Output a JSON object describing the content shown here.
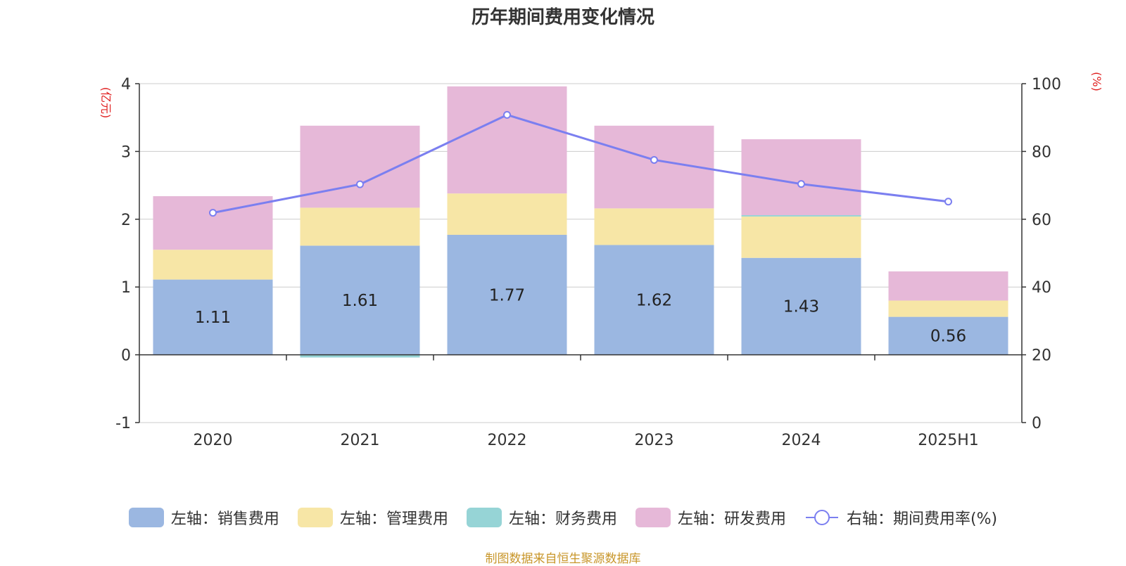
{
  "chart_data": {
    "type": "bar",
    "title": "历年期间费用变化情况",
    "categories": [
      "2020",
      "2021",
      "2022",
      "2023",
      "2024",
      "2025H1"
    ],
    "series": [
      {
        "name": "左轴：销售费用",
        "axis": "left",
        "kind": "stacked-bar",
        "color": "#9bb7e1",
        "values": [
          1.11,
          1.61,
          1.77,
          1.62,
          1.43,
          0.56
        ],
        "labels": [
          "1.11",
          "1.61",
          "1.77",
          "1.62",
          "1.43",
          "0.56"
        ]
      },
      {
        "name": "左轴：管理费用",
        "axis": "left",
        "kind": "stacked-bar",
        "color": "#f7e6a6",
        "values": [
          0.44,
          0.56,
          0.61,
          0.54,
          0.61,
          0.24
        ]
      },
      {
        "name": "左轴：财务费用",
        "axis": "left",
        "kind": "stacked-bar",
        "color": "#96d4d6",
        "values": [
          0.0,
          -0.04,
          0.0,
          0.0,
          0.02,
          0.0
        ]
      },
      {
        "name": "左轴：研发费用",
        "axis": "left",
        "kind": "stacked-bar",
        "color": "#e6b8d8",
        "values": [
          0.79,
          1.21,
          1.58,
          1.22,
          1.12,
          0.43
        ]
      },
      {
        "name": "右轴：期间费用率(%)",
        "axis": "right",
        "kind": "line",
        "color": "#7b7ff0",
        "values": [
          61.9,
          70.3,
          90.8,
          77.5,
          70.4,
          65.2
        ]
      }
    ],
    "left_axis": {
      "label": "(亿元)",
      "ylim": [
        -1,
        4
      ],
      "ticks": [
        "-1",
        "0",
        "1",
        "2",
        "3",
        "4"
      ]
    },
    "right_axis": {
      "label": "(%)",
      "ylim": [
        0,
        100
      ],
      "ticks": [
        "0",
        "20",
        "40",
        "60",
        "80",
        "100"
      ]
    },
    "grid": true,
    "legend_position": "bottom"
  },
  "source": "制图数据来自恒生聚源数据库"
}
